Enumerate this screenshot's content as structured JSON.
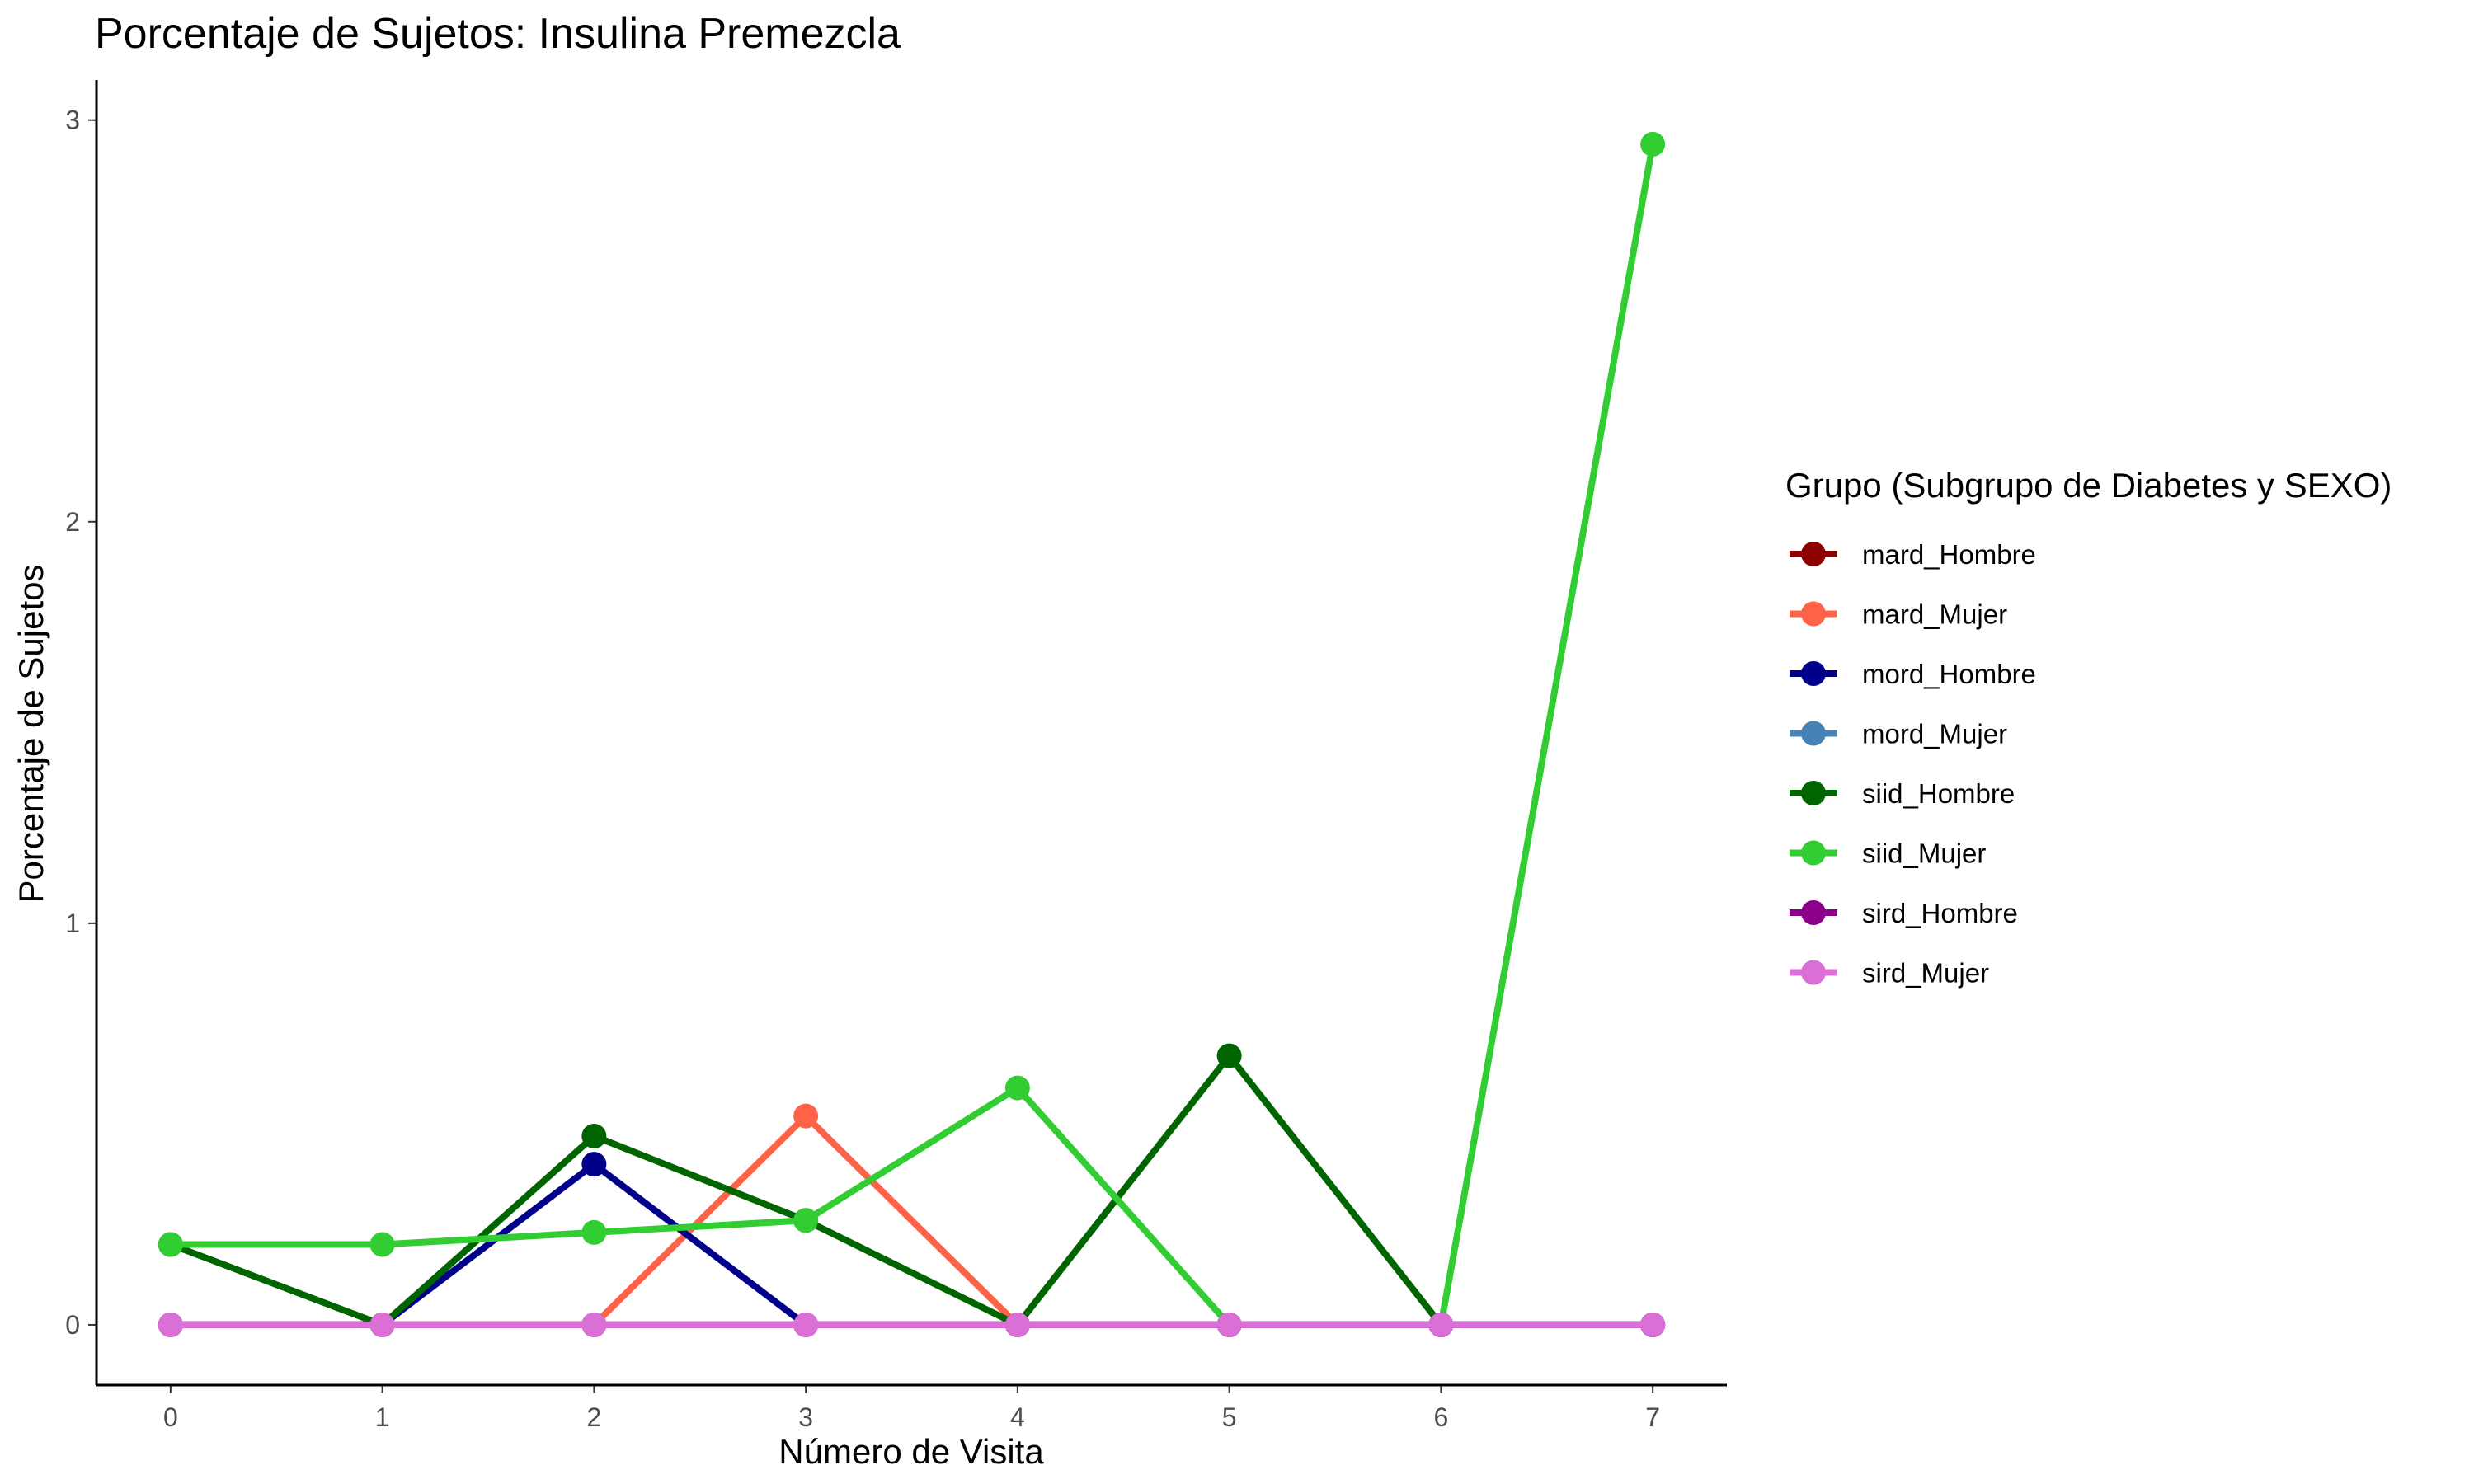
{
  "chart_data": {
    "type": "line",
    "title": "Porcentaje de Sujetos: Insulina Premezcla",
    "xlabel": "Número de Visita",
    "ylabel": "Porcentaje de Sujetos",
    "x": [
      0,
      1,
      2,
      3,
      4,
      5,
      6,
      7
    ],
    "x_tick_labels": [
      "0",
      "1",
      "2",
      "3",
      "4",
      "5",
      "6",
      "7"
    ],
    "y_tick_labels": [
      "0",
      "1",
      "2",
      "3"
    ],
    "xlim": [
      -0.35,
      7.35
    ],
    "ylim": [
      -0.15,
      3.1
    ],
    "grid": false,
    "legend": {
      "title": "Grupo (Subgrupo de Diabetes y SEXO)",
      "position": "right"
    },
    "series": [
      {
        "name": "mard_Hombre",
        "color": "#8B0000",
        "values": [
          0,
          0,
          0,
          0,
          0,
          0,
          0,
          0
        ]
      },
      {
        "name": "mard_Mujer",
        "color": "#FF6347",
        "values": [
          0,
          0,
          0,
          0.52,
          0,
          0,
          0,
          0
        ]
      },
      {
        "name": "mord_Hombre",
        "color": "#00008B",
        "values": [
          0,
          0,
          0.4,
          0,
          0,
          0,
          0,
          0
        ]
      },
      {
        "name": "mord_Mujer",
        "color": "#4682B4",
        "values": [
          0,
          0,
          0,
          0,
          0,
          0,
          0,
          0
        ]
      },
      {
        "name": "siid_Hombre",
        "color": "#006400",
        "values": [
          0.2,
          0,
          0.47,
          0.26,
          0,
          0.67,
          0,
          0
        ]
      },
      {
        "name": "siid_Mujer",
        "color": "#32CD32",
        "values": [
          0.2,
          0.2,
          0.23,
          0.26,
          0.59,
          0,
          0,
          2.94
        ]
      },
      {
        "name": "sird_Hombre",
        "color": "#8B008B",
        "values": [
          0,
          0,
          0,
          0,
          0,
          0,
          0,
          0
        ]
      },
      {
        "name": "sird_Mujer",
        "color": "#DA70D6",
        "values": [
          0,
          0,
          0,
          0,
          0,
          0,
          0,
          0
        ]
      }
    ]
  }
}
